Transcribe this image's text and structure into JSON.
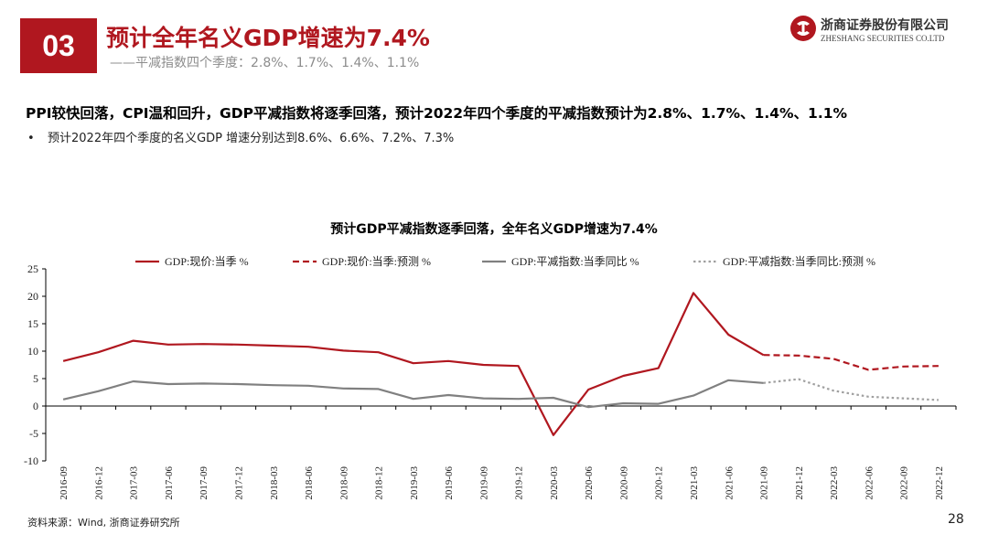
{
  "header": {
    "badge": "03",
    "title": "预计全年名义GDP增速为7.4%",
    "subtitle": "——平减指数四个季度：2.8%、1.7%、1.4%、1.1%"
  },
  "logo": {
    "name_cn": "浙商证券股份有限公司",
    "name_en": "ZHESHANG SECURITIES CO.LTD",
    "icon": "zheshang-logo-icon",
    "color": "#b0171f"
  },
  "headline": "PPI较快回落，CPI温和回升，GDP平减指数将逐季回落，预计2022年四个季度的平减指数预计为2.8%、1.7%、1.4%、1.1%",
  "bullet": {
    "marker": "•",
    "text": "预计2022年四个季度的名义GDP 增速分别达到8.6%、6.6%、7.2%、7.3%"
  },
  "chart_data": {
    "type": "line",
    "title": "预计GDP平减指数逐季回落，全年名义GDP增速为7.4%",
    "categories": [
      "2016-09",
      "2016-12",
      "2017-03",
      "2017-06",
      "2017-09",
      "2017-12",
      "2018-03",
      "2018-06",
      "2018-09",
      "2018-12",
      "2019-03",
      "2019-06",
      "2019-09",
      "2019-12",
      "2020-03",
      "2020-06",
      "2020-09",
      "2020-12",
      "2021-03",
      "2021-06",
      "2021-09",
      "2021-12",
      "2022-03",
      "2022-06",
      "2022-09",
      "2022-12"
    ],
    "ylim": [
      -10,
      25
    ],
    "yticks": [
      -10,
      -5,
      0,
      5,
      10,
      15,
      20,
      25
    ],
    "legend_position": "top",
    "series": [
      {
        "name": "GDP:现价:当季 %",
        "color": "#b0171f",
        "style": "solid",
        "values": [
          8.2,
          9.8,
          11.9,
          11.2,
          11.3,
          11.2,
          11.0,
          10.8,
          10.1,
          9.8,
          7.8,
          8.2,
          7.5,
          7.3,
          -5.3,
          3.0,
          5.5,
          6.9,
          20.6,
          13.0,
          9.3,
          null,
          null,
          null,
          null,
          null
        ]
      },
      {
        "name": "GDP:现价:当季:预测 %",
        "color": "#b0171f",
        "style": "dashed",
        "values": [
          null,
          null,
          null,
          null,
          null,
          null,
          null,
          null,
          null,
          null,
          null,
          null,
          null,
          null,
          null,
          null,
          null,
          null,
          null,
          null,
          9.3,
          9.2,
          8.6,
          6.6,
          7.2,
          7.3
        ]
      },
      {
        "name": "GDP:平减指数:当季同比 %",
        "color": "#808080",
        "style": "solid",
        "values": [
          1.2,
          2.7,
          4.5,
          4.0,
          4.1,
          4.0,
          3.8,
          3.7,
          3.2,
          3.1,
          1.3,
          2.0,
          1.4,
          1.3,
          1.5,
          -0.2,
          0.5,
          0.4,
          1.9,
          4.7,
          4.2,
          null,
          null,
          null,
          null,
          null
        ]
      },
      {
        "name": "GDP:平减指数:当季同比:预测 %",
        "color": "#a0a0a0",
        "style": "dotted",
        "values": [
          null,
          null,
          null,
          null,
          null,
          null,
          null,
          null,
          null,
          null,
          null,
          null,
          null,
          null,
          null,
          null,
          null,
          null,
          null,
          null,
          4.2,
          4.9,
          2.8,
          1.7,
          1.4,
          1.1
        ]
      }
    ]
  },
  "source": "资料来源：Wind, 浙商证券研究所",
  "page_number": "28"
}
